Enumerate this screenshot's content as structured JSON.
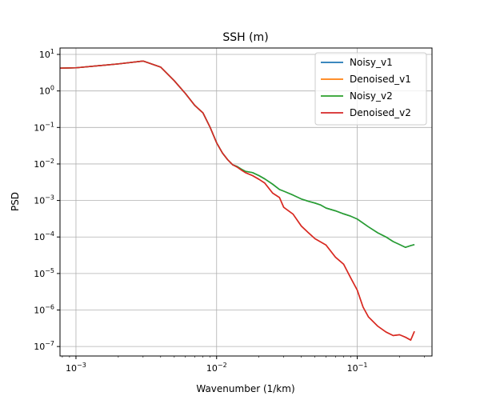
{
  "chart_data": {
    "type": "line",
    "title": "SSH (m)",
    "xlabel": "Wavenumber (1/km)",
    "ylabel": "PSD",
    "xscale": "log",
    "yscale": "log",
    "xlim": [
      0.00077,
      0.34
    ],
    "ylim": [
      5.5e-08,
      15
    ],
    "grid": true,
    "legend": "top-right",
    "x_ticks": [
      {
        "value": 0.001,
        "base": "10",
        "exp": "−3"
      },
      {
        "value": 0.01,
        "base": "10",
        "exp": "−2"
      },
      {
        "value": 0.1,
        "base": "10",
        "exp": "−1"
      }
    ],
    "y_ticks": [
      {
        "value": 1e-07,
        "base": "10",
        "exp": "−7"
      },
      {
        "value": 1e-06,
        "base": "10",
        "exp": "−6"
      },
      {
        "value": 1e-05,
        "base": "10",
        "exp": "−5"
      },
      {
        "value": 0.0001,
        "base": "10",
        "exp": "−4"
      },
      {
        "value": 0.001,
        "base": "10",
        "exp": "−3"
      },
      {
        "value": 0.01,
        "base": "10",
        "exp": "−2"
      },
      {
        "value": 0.1,
        "base": "10",
        "exp": "−1"
      },
      {
        "value": 1,
        "base": "10",
        "exp": "0"
      },
      {
        "value": 10,
        "base": "10",
        "exp": "1"
      }
    ],
    "series": [
      {
        "name": "Noisy_v1",
        "color": "#1f77b4",
        "points": [
          [
            0.00077,
            4.2
          ],
          [
            0.001,
            4.3
          ],
          [
            0.002,
            5.5
          ],
          [
            0.003,
            6.6
          ],
          [
            0.004,
            4.5
          ],
          [
            0.005,
            1.9
          ],
          [
            0.006,
            0.85
          ],
          [
            0.007,
            0.4
          ],
          [
            0.008,
            0.25
          ],
          [
            0.009,
            0.1
          ],
          [
            0.01,
            0.038
          ],
          [
            0.011,
            0.02
          ],
          [
            0.012,
            0.013
          ],
          [
            0.013,
            0.0095
          ],
          [
            0.014,
            0.0085
          ],
          [
            0.015,
            0.0072
          ],
          [
            0.016,
            0.0063
          ],
          [
            0.018,
            0.0058
          ],
          [
            0.02,
            0.0048
          ],
          [
            0.022,
            0.0039
          ],
          [
            0.025,
            0.0028
          ],
          [
            0.028,
            0.002
          ],
          [
            0.03,
            0.0018
          ],
          [
            0.035,
            0.0014
          ],
          [
            0.04,
            0.0011
          ],
          [
            0.045,
            0.00095
          ],
          [
            0.05,
            0.00085
          ],
          [
            0.055,
            0.00075
          ],
          [
            0.06,
            0.00062
          ],
          [
            0.07,
            0.00052
          ],
          [
            0.08,
            0.00043
          ],
          [
            0.09,
            0.00037
          ],
          [
            0.1,
            0.00031
          ],
          [
            0.12,
            0.00019
          ],
          [
            0.14,
            0.00013
          ],
          [
            0.16,
            0.0001
          ],
          [
            0.18,
            7.5e-05
          ],
          [
            0.2,
            6.2e-05
          ],
          [
            0.22,
            5.2e-05
          ],
          [
            0.24,
            5.8e-05
          ],
          [
            0.255,
            6.2e-05
          ]
        ]
      },
      {
        "name": "Denoised_v1",
        "color": "#ff7f0e",
        "points": [
          [
            0.00077,
            4.2
          ],
          [
            0.001,
            4.3
          ],
          [
            0.002,
            5.5
          ],
          [
            0.003,
            6.6
          ],
          [
            0.004,
            4.5
          ],
          [
            0.005,
            1.9
          ],
          [
            0.006,
            0.85
          ],
          [
            0.007,
            0.4
          ],
          [
            0.008,
            0.25
          ],
          [
            0.009,
            0.1
          ],
          [
            0.01,
            0.038
          ],
          [
            0.011,
            0.02
          ],
          [
            0.012,
            0.013
          ],
          [
            0.013,
            0.0095
          ],
          [
            0.014,
            0.0082
          ],
          [
            0.015,
            0.0068
          ],
          [
            0.016,
            0.0058
          ],
          [
            0.018,
            0.0048
          ],
          [
            0.02,
            0.0038
          ],
          [
            0.022,
            0.003
          ],
          [
            0.025,
            0.0016
          ],
          [
            0.028,
            0.0012
          ],
          [
            0.03,
            0.00065
          ],
          [
            0.035,
            0.00042
          ],
          [
            0.04,
            0.0002
          ],
          [
            0.045,
            0.00013
          ],
          [
            0.05,
            9e-05
          ],
          [
            0.06,
            6e-05
          ],
          [
            0.07,
            2.8e-05
          ],
          [
            0.08,
            1.8e-05
          ],
          [
            0.09,
            7.5e-06
          ],
          [
            0.1,
            3.5e-06
          ],
          [
            0.11,
            1.2e-06
          ],
          [
            0.12,
            6.5e-07
          ],
          [
            0.14,
            3.6e-07
          ],
          [
            0.16,
            2.5e-07
          ],
          [
            0.18,
            2e-07
          ],
          [
            0.2,
            2.1e-07
          ],
          [
            0.22,
            1.8e-07
          ],
          [
            0.24,
            1.5e-07
          ],
          [
            0.255,
            2.6e-07
          ]
        ]
      },
      {
        "name": "Noisy_v2",
        "color": "#2ca02c",
        "points": [
          [
            0.00077,
            4.2
          ],
          [
            0.001,
            4.3
          ],
          [
            0.002,
            5.5
          ],
          [
            0.003,
            6.6
          ],
          [
            0.004,
            4.5
          ],
          [
            0.005,
            1.9
          ],
          [
            0.006,
            0.85
          ],
          [
            0.007,
            0.4
          ],
          [
            0.008,
            0.25
          ],
          [
            0.009,
            0.1
          ],
          [
            0.01,
            0.038
          ],
          [
            0.011,
            0.02
          ],
          [
            0.012,
            0.013
          ],
          [
            0.013,
            0.0095
          ],
          [
            0.014,
            0.0085
          ],
          [
            0.015,
            0.0072
          ],
          [
            0.016,
            0.0063
          ],
          [
            0.018,
            0.0058
          ],
          [
            0.02,
            0.0048
          ],
          [
            0.022,
            0.0039
          ],
          [
            0.025,
            0.0028
          ],
          [
            0.028,
            0.002
          ],
          [
            0.03,
            0.0018
          ],
          [
            0.035,
            0.0014
          ],
          [
            0.04,
            0.0011
          ],
          [
            0.045,
            0.00095
          ],
          [
            0.05,
            0.00085
          ],
          [
            0.055,
            0.00075
          ],
          [
            0.06,
            0.00062
          ],
          [
            0.07,
            0.00052
          ],
          [
            0.08,
            0.00043
          ],
          [
            0.09,
            0.00037
          ],
          [
            0.1,
            0.00031
          ],
          [
            0.12,
            0.00019
          ],
          [
            0.14,
            0.00013
          ],
          [
            0.16,
            0.0001
          ],
          [
            0.18,
            7.5e-05
          ],
          [
            0.2,
            6.2e-05
          ],
          [
            0.22,
            5.2e-05
          ],
          [
            0.24,
            5.8e-05
          ],
          [
            0.255,
            6.2e-05
          ]
        ]
      },
      {
        "name": "Denoised_v2",
        "color": "#d62728",
        "points": [
          [
            0.00077,
            4.2
          ],
          [
            0.001,
            4.3
          ],
          [
            0.002,
            5.5
          ],
          [
            0.003,
            6.6
          ],
          [
            0.004,
            4.5
          ],
          [
            0.005,
            1.9
          ],
          [
            0.006,
            0.85
          ],
          [
            0.007,
            0.4
          ],
          [
            0.008,
            0.25
          ],
          [
            0.009,
            0.1
          ],
          [
            0.01,
            0.038
          ],
          [
            0.011,
            0.02
          ],
          [
            0.012,
            0.013
          ],
          [
            0.013,
            0.0095
          ],
          [
            0.014,
            0.0082
          ],
          [
            0.015,
            0.0068
          ],
          [
            0.016,
            0.0058
          ],
          [
            0.018,
            0.0048
          ],
          [
            0.02,
            0.0038
          ],
          [
            0.022,
            0.003
          ],
          [
            0.025,
            0.0016
          ],
          [
            0.028,
            0.0012
          ],
          [
            0.03,
            0.00065
          ],
          [
            0.035,
            0.00042
          ],
          [
            0.04,
            0.0002
          ],
          [
            0.045,
            0.00013
          ],
          [
            0.05,
            9e-05
          ],
          [
            0.06,
            6e-05
          ],
          [
            0.07,
            2.8e-05
          ],
          [
            0.08,
            1.8e-05
          ],
          [
            0.09,
            7.5e-06
          ],
          [
            0.1,
            3.5e-06
          ],
          [
            0.11,
            1.2e-06
          ],
          [
            0.12,
            6.5e-07
          ],
          [
            0.14,
            3.6e-07
          ],
          [
            0.16,
            2.5e-07
          ],
          [
            0.18,
            2e-07
          ],
          [
            0.2,
            2.1e-07
          ],
          [
            0.22,
            1.8e-07
          ],
          [
            0.24,
            1.5e-07
          ],
          [
            0.255,
            2.6e-07
          ]
        ]
      }
    ]
  }
}
